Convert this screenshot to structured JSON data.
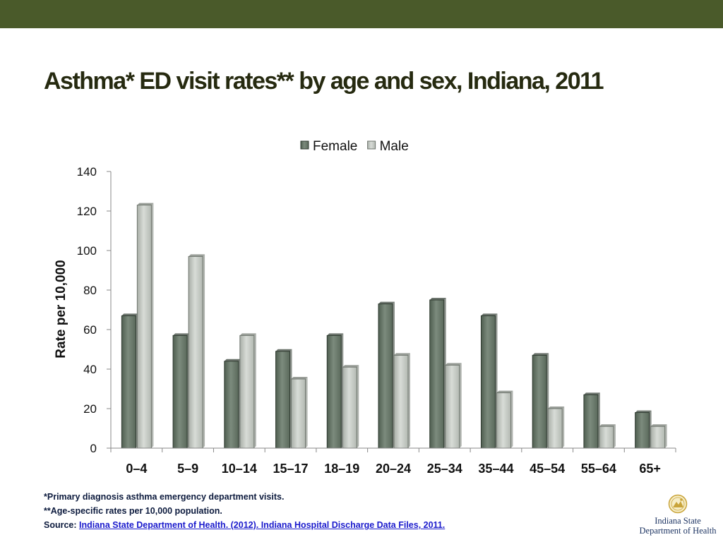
{
  "title": "Asthma* ED visit rates** by age and sex, Indiana, 2011",
  "footnotes": {
    "note1": "*Primary diagnosis asthma emergency department visits.",
    "note2": "**Age-specific rates per 10,000 population.",
    "source_prefix": "Source: ",
    "source_link": "Indiana State Department of Health. (2012). Indiana Hospital Discharge Data Files, 2011."
  },
  "logo": {
    "line1": "Indiana State",
    "line2": "Department of Health",
    "icon": "state-seal-icon"
  },
  "colors": {
    "band": "#4a5a2a",
    "title": "#262a10",
    "female": "#6b7a6c",
    "male": "#c4c9c3"
  },
  "chart_data": {
    "type": "bar",
    "title": "",
    "xlabel": "",
    "ylabel": "Rate per 10,000",
    "ylim": [
      0,
      140
    ],
    "yticks": [
      0,
      20,
      40,
      60,
      80,
      100,
      120,
      140
    ],
    "grid": false,
    "legend_position": "top",
    "categories": [
      "0–4",
      "5–9",
      "10–14",
      "15–17",
      "18–19",
      "20–24",
      "25–34",
      "35–44",
      "45–54",
      "55–64",
      "65+"
    ],
    "series": [
      {
        "name": "Female",
        "values": [
          67,
          57,
          44,
          49,
          57,
          73,
          75,
          67,
          47,
          27,
          18
        ]
      },
      {
        "name": "Male",
        "values": [
          123,
          97,
          57,
          35,
          41,
          47,
          42,
          28,
          20,
          11,
          11
        ]
      }
    ]
  }
}
